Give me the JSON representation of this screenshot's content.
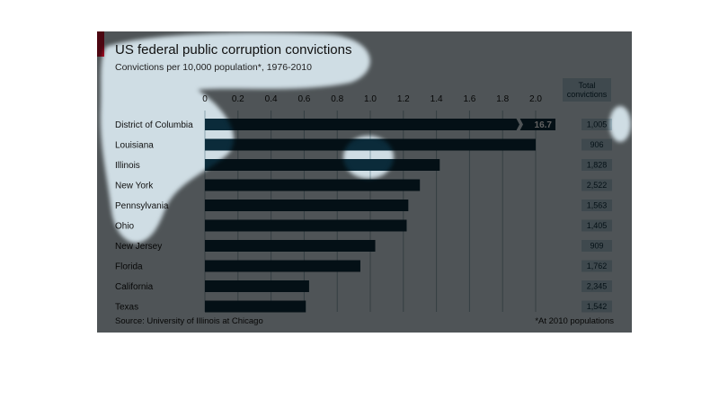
{
  "title": "US federal public corruption convictions",
  "subtitle": "Convictions per 10,000 population*, 1976-2010",
  "total_header": "Total convictions",
  "source": "Source: University of Illinois at Chicago",
  "footnote": "*At 2010 populations",
  "colors": {
    "bar": "#0b2b3a",
    "highlight": "#0e7ca3",
    "accent": "#c8102e",
    "background": "#cfdde4",
    "total_box": "#a6c0cc"
  },
  "chart_data": {
    "type": "bar",
    "orientation": "horizontal",
    "categories": [
      "District of Columbia",
      "Louisiana",
      "Illinois",
      "New York",
      "Pennsylvania",
      "Ohio",
      "New Jersey",
      "Florida",
      "California",
      "Texas"
    ],
    "values": [
      16.7,
      2.0,
      1.42,
      1.3,
      1.23,
      1.22,
      1.03,
      0.94,
      0.63,
      0.61
    ],
    "value_label": "16.7",
    "totals": [
      "1,005",
      "906",
      "1,828",
      "2,522",
      "1,563",
      "1,405",
      "909",
      "1,762",
      "2,345",
      "1,542"
    ],
    "x_ticks": [
      "0",
      "0.2",
      "0.4",
      "0.6",
      "0.8",
      "1.0",
      "1.2",
      "1.4",
      "1.6",
      "1.8",
      "2.0"
    ],
    "xlim": [
      0,
      2.0
    ],
    "axis_break": true,
    "grid": true
  }
}
